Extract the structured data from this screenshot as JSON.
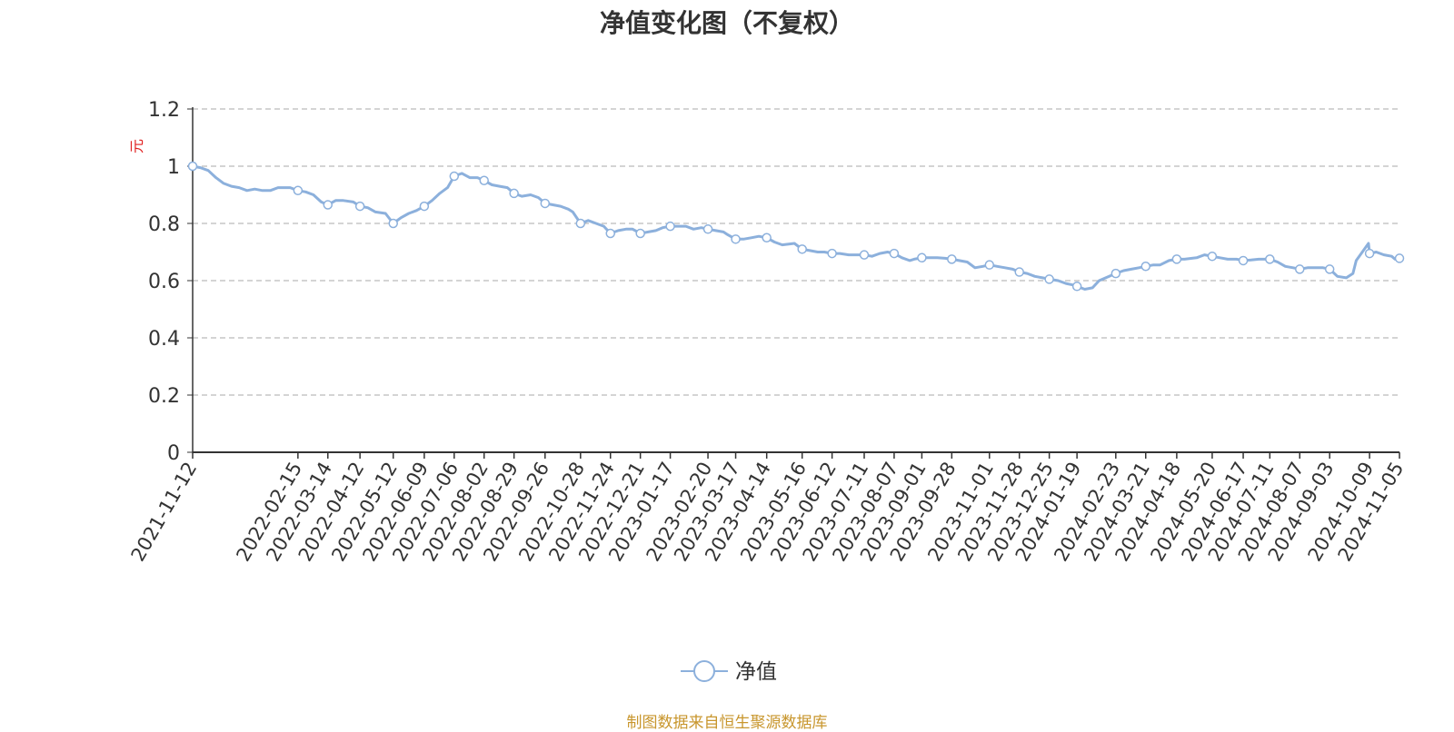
{
  "chart_data": {
    "type": "line",
    "title": "净值变化图（不复权）",
    "ylabel": "元",
    "ylim": [
      0,
      1.2
    ],
    "yticks": [
      "0",
      "0.2",
      "0.4",
      "0.6",
      "0.8",
      "1",
      "1.2"
    ],
    "grid": "horizontal-dashed",
    "legend_position": "bottom-center",
    "x_ticks": [
      "2021-11-12",
      "2022-02-15",
      "2022-03-14",
      "2022-04-12",
      "2022-05-12",
      "2022-06-09",
      "2022-07-06",
      "2022-08-02",
      "2022-08-29",
      "2022-09-26",
      "2022-10-28",
      "2022-11-24",
      "2022-12-21",
      "2023-01-17",
      "2023-02-20",
      "2023-03-17",
      "2023-04-14",
      "2023-05-16",
      "2023-06-12",
      "2023-07-11",
      "2023-08-07",
      "2023-09-01",
      "2023-09-28",
      "2023-11-01",
      "2023-11-28",
      "2023-12-25",
      "2024-01-19",
      "2024-02-23",
      "2024-03-21",
      "2024-04-18",
      "2024-05-20",
      "2024-06-17",
      "2024-07-11",
      "2024-08-07",
      "2024-09-03",
      "2024-10-09",
      "2024-11-05"
    ],
    "series": [
      {
        "name": "净值",
        "color": "#8cb0dc",
        "points": [
          [
            "2021-11-12",
            1.0
          ],
          [
            "2021-11-19",
            0.995
          ],
          [
            "2021-11-26",
            0.985
          ],
          [
            "2021-12-03",
            0.96
          ],
          [
            "2021-12-10",
            0.94
          ],
          [
            "2021-12-17",
            0.93
          ],
          [
            "2021-12-24",
            0.925
          ],
          [
            "2021-12-31",
            0.915
          ],
          [
            "2022-01-07",
            0.92
          ],
          [
            "2022-01-14",
            0.915
          ],
          [
            "2022-01-21",
            0.915
          ],
          [
            "2022-01-28",
            0.925
          ],
          [
            "2022-02-08",
            0.925
          ],
          [
            "2022-02-15",
            0.915
          ],
          [
            "2022-02-22",
            0.91
          ],
          [
            "2022-03-01",
            0.9
          ],
          [
            "2022-03-08",
            0.875
          ],
          [
            "2022-03-14",
            0.865
          ],
          [
            "2022-03-21",
            0.88
          ],
          [
            "2022-03-28",
            0.88
          ],
          [
            "2022-04-06",
            0.875
          ],
          [
            "2022-04-12",
            0.86
          ],
          [
            "2022-04-19",
            0.855
          ],
          [
            "2022-04-26",
            0.84
          ],
          [
            "2022-05-05",
            0.835
          ],
          [
            "2022-05-12",
            0.8
          ],
          [
            "2022-05-19",
            0.82
          ],
          [
            "2022-05-26",
            0.835
          ],
          [
            "2022-06-02",
            0.845
          ],
          [
            "2022-06-09",
            0.86
          ],
          [
            "2022-06-16",
            0.88
          ],
          [
            "2022-06-23",
            0.905
          ],
          [
            "2022-06-30",
            0.925
          ],
          [
            "2022-07-06",
            0.965
          ],
          [
            "2022-07-13",
            0.975
          ],
          [
            "2022-07-20",
            0.96
          ],
          [
            "2022-07-27",
            0.96
          ],
          [
            "2022-08-02",
            0.95
          ],
          [
            "2022-08-09",
            0.935
          ],
          [
            "2022-08-16",
            0.93
          ],
          [
            "2022-08-23",
            0.925
          ],
          [
            "2022-08-29",
            0.905
          ],
          [
            "2022-09-05",
            0.895
          ],
          [
            "2022-09-13",
            0.9
          ],
          [
            "2022-09-20",
            0.89
          ],
          [
            "2022-09-26",
            0.87
          ],
          [
            "2022-10-10",
            0.86
          ],
          [
            "2022-10-17",
            0.85
          ],
          [
            "2022-10-21",
            0.84
          ],
          [
            "2022-10-28",
            0.8
          ],
          [
            "2022-11-04",
            0.81
          ],
          [
            "2022-11-11",
            0.8
          ],
          [
            "2022-11-18",
            0.79
          ],
          [
            "2022-11-24",
            0.765
          ],
          [
            "2022-12-01",
            0.775
          ],
          [
            "2022-12-08",
            0.78
          ],
          [
            "2022-12-14",
            0.78
          ],
          [
            "2022-12-21",
            0.765
          ],
          [
            "2022-12-28",
            0.77
          ],
          [
            "2023-01-04",
            0.775
          ],
          [
            "2023-01-10",
            0.785
          ],
          [
            "2023-01-17",
            0.79
          ],
          [
            "2023-01-31",
            0.79
          ],
          [
            "2023-02-07",
            0.78
          ],
          [
            "2023-02-14",
            0.785
          ],
          [
            "2023-02-20",
            0.78
          ],
          [
            "2023-02-27",
            0.775
          ],
          [
            "2023-03-06",
            0.77
          ],
          [
            "2023-03-10",
            0.76
          ],
          [
            "2023-03-17",
            0.745
          ],
          [
            "2023-03-24",
            0.745
          ],
          [
            "2023-03-31",
            0.75
          ],
          [
            "2023-04-07",
            0.755
          ],
          [
            "2023-04-14",
            0.75
          ],
          [
            "2023-04-21",
            0.735
          ],
          [
            "2023-04-28",
            0.725
          ],
          [
            "2023-05-09",
            0.73
          ],
          [
            "2023-05-16",
            0.71
          ],
          [
            "2023-05-23",
            0.705
          ],
          [
            "2023-05-30",
            0.7
          ],
          [
            "2023-06-05",
            0.7
          ],
          [
            "2023-06-12",
            0.695
          ],
          [
            "2023-06-19",
            0.695
          ],
          [
            "2023-06-27",
            0.69
          ],
          [
            "2023-07-04",
            0.69
          ],
          [
            "2023-07-11",
            0.69
          ],
          [
            "2023-07-18",
            0.685
          ],
          [
            "2023-07-25",
            0.695
          ],
          [
            "2023-08-01",
            0.7
          ],
          [
            "2023-08-07",
            0.695
          ],
          [
            "2023-08-14",
            0.68
          ],
          [
            "2023-08-21",
            0.67
          ],
          [
            "2023-08-25",
            0.675
          ],
          [
            "2023-09-01",
            0.68
          ],
          [
            "2023-09-08",
            0.68
          ],
          [
            "2023-09-15",
            0.68
          ],
          [
            "2023-09-22",
            0.678
          ],
          [
            "2023-09-28",
            0.675
          ],
          [
            "2023-10-12",
            0.665
          ],
          [
            "2023-10-19",
            0.645
          ],
          [
            "2023-10-26",
            0.65
          ],
          [
            "2023-11-01",
            0.655
          ],
          [
            "2023-11-08",
            0.65
          ],
          [
            "2023-11-15",
            0.645
          ],
          [
            "2023-11-22",
            0.64
          ],
          [
            "2023-11-28",
            0.63
          ],
          [
            "2023-12-05",
            0.625
          ],
          [
            "2023-12-12",
            0.615
          ],
          [
            "2023-12-19",
            0.61
          ],
          [
            "2023-12-25",
            0.605
          ],
          [
            "2024-01-02",
            0.6
          ],
          [
            "2024-01-09",
            0.59
          ],
          [
            "2024-01-15",
            0.585
          ],
          [
            "2024-01-19",
            0.58
          ],
          [
            "2024-01-26",
            0.57
          ],
          [
            "2024-02-02",
            0.575
          ],
          [
            "2024-02-08",
            0.6
          ],
          [
            "2024-02-23",
            0.625
          ],
          [
            "2024-03-01",
            0.635
          ],
          [
            "2024-03-08",
            0.64
          ],
          [
            "2024-03-15",
            0.645
          ],
          [
            "2024-03-21",
            0.65
          ],
          [
            "2024-03-28",
            0.655
          ],
          [
            "2024-04-03",
            0.655
          ],
          [
            "2024-04-11",
            0.67
          ],
          [
            "2024-04-18",
            0.675
          ],
          [
            "2024-04-25",
            0.675
          ],
          [
            "2024-05-06",
            0.68
          ],
          [
            "2024-05-13",
            0.69
          ],
          [
            "2024-05-20",
            0.685
          ],
          [
            "2024-05-27",
            0.68
          ],
          [
            "2024-06-03",
            0.675
          ],
          [
            "2024-06-11",
            0.675
          ],
          [
            "2024-06-17",
            0.67
          ],
          [
            "2024-06-24",
            0.672
          ],
          [
            "2024-07-01",
            0.675
          ],
          [
            "2024-07-05",
            0.675
          ],
          [
            "2024-07-11",
            0.675
          ],
          [
            "2024-07-18",
            0.665
          ],
          [
            "2024-07-25",
            0.65
          ],
          [
            "2024-08-01",
            0.645
          ],
          [
            "2024-08-07",
            0.64
          ],
          [
            "2024-08-14",
            0.645
          ],
          [
            "2024-08-21",
            0.645
          ],
          [
            "2024-08-28",
            0.645
          ],
          [
            "2024-09-03",
            0.64
          ],
          [
            "2024-09-10",
            0.615
          ],
          [
            "2024-09-18",
            0.61
          ],
          [
            "2024-09-24",
            0.625
          ],
          [
            "2024-09-27",
            0.67
          ],
          [
            "2024-10-08",
            0.73
          ],
          [
            "2024-10-09",
            0.695
          ],
          [
            "2024-10-15",
            0.7
          ],
          [
            "2024-10-22",
            0.69
          ],
          [
            "2024-10-29",
            0.685
          ],
          [
            "2024-11-01",
            0.675
          ],
          [
            "2024-11-05",
            0.678
          ]
        ],
        "markers": [
          "2021-11-12",
          "2022-02-15",
          "2022-03-14",
          "2022-04-12",
          "2022-05-12",
          "2022-06-09",
          "2022-07-06",
          "2022-08-02",
          "2022-08-29",
          "2022-09-26",
          "2022-10-28",
          "2022-11-24",
          "2022-12-21",
          "2023-01-17",
          "2023-02-20",
          "2023-03-17",
          "2023-04-14",
          "2023-05-16",
          "2023-06-12",
          "2023-07-11",
          "2023-08-07",
          "2023-09-01",
          "2023-09-28",
          "2023-11-01",
          "2023-11-28",
          "2023-12-25",
          "2024-01-19",
          "2024-02-23",
          "2024-03-21",
          "2024-04-18",
          "2024-05-20",
          "2024-06-17",
          "2024-07-11",
          "2024-08-07",
          "2024-09-03",
          "2024-10-09",
          "2024-11-05"
        ]
      }
    ]
  },
  "footer": {
    "source": "制图数据来自恒生聚源数据库"
  },
  "colors": {
    "axis": "#333333",
    "grid": "#aaaaaa",
    "ylabel": "#e02020",
    "source": "#c8962d"
  }
}
